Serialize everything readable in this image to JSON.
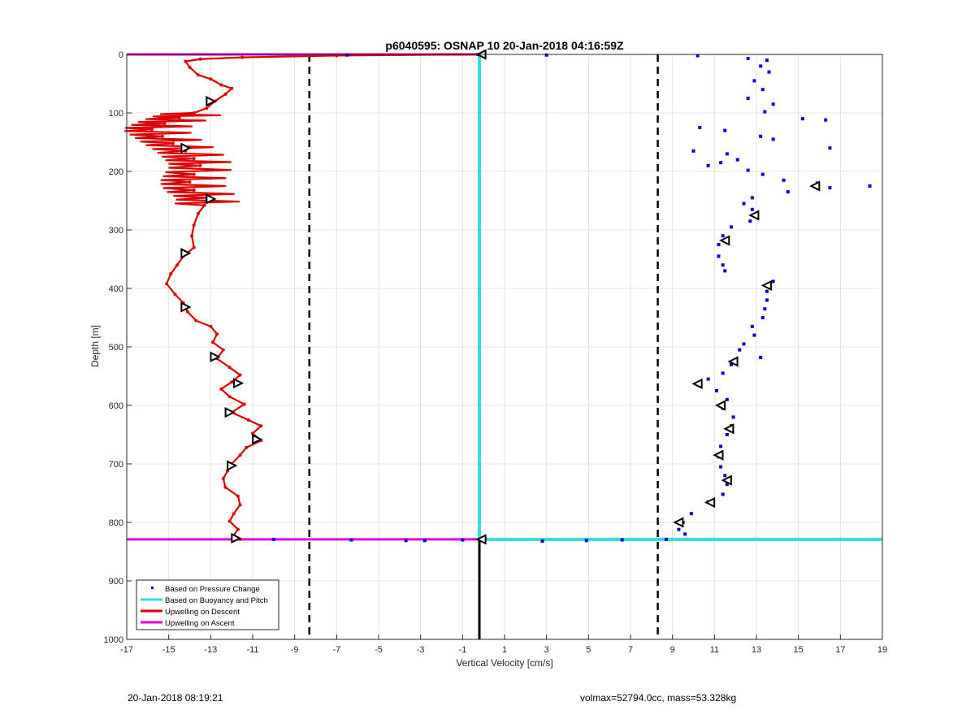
{
  "chart_data": {
    "type": "scatter",
    "title": "p6040595: OSNAP 10 20-Jan-2018 04:16:59Z",
    "xlabel": "Vertical Velocity [cm/s]",
    "ylabel": "Depth [m]",
    "xlim": [
      -17,
      19
    ],
    "ylim": [
      0,
      1000
    ],
    "y_reversed": true,
    "grid": true,
    "xticks": [
      -17,
      -15,
      -13,
      -11,
      -9,
      -7,
      -5,
      -3,
      -1,
      1,
      3,
      5,
      7,
      9,
      11,
      13,
      15,
      17,
      19
    ],
    "yticks": [
      0,
      100,
      200,
      300,
      400,
      500,
      600,
      700,
      800,
      900,
      1000
    ],
    "legend_position": "bottom-left",
    "legend": [
      {
        "label": "Based on Pressure Change",
        "color": "#0000cc",
        "style": "dot"
      },
      {
        "label": "Based on Buoyancy and Pitch",
        "color": "#33dddd",
        "style": "line"
      },
      {
        "label": "Upwelling on Descent",
        "color": "#dd0000",
        "style": "line"
      },
      {
        "label": "Upwelling on Ascent",
        "color": "#dd00dd",
        "style": "line"
      }
    ],
    "reference_lines": {
      "dashed_vertical_x": [
        -8.3,
        8.3
      ],
      "solid_vertical_x": -0.2
    },
    "series": [
      {
        "name": "Upwelling on Descent",
        "color": "#dd0000",
        "points": [
          [
            -0.3,
            0
          ],
          [
            -7,
            2
          ],
          [
            -11.5,
            5
          ],
          [
            -13.5,
            8
          ],
          [
            -14.2,
            12
          ],
          [
            -14,
            22
          ],
          [
            -13.6,
            35
          ],
          [
            -13,
            42
          ],
          [
            -12.5,
            52
          ],
          [
            -12,
            58
          ],
          [
            -12.3,
            68
          ],
          [
            -12.8,
            80
          ],
          [
            -13.2,
            92
          ],
          [
            -13.8,
            100
          ],
          [
            -14.5,
            108
          ],
          [
            -15.2,
            118
          ],
          [
            -15.8,
            128
          ],
          [
            -15.3,
            140
          ],
          [
            -14.8,
            152
          ],
          [
            -14.2,
            165
          ],
          [
            -13.8,
            178
          ],
          [
            -13.5,
            190
          ],
          [
            -13.8,
            205
          ],
          [
            -14,
            218
          ],
          [
            -13.8,
            232
          ],
          [
            -13.2,
            245
          ],
          [
            -13.3,
            258
          ],
          [
            -13.6,
            272
          ],
          [
            -13.8,
            292
          ],
          [
            -13.9,
            310
          ],
          [
            -13.8,
            330
          ],
          [
            -14.3,
            345
          ],
          [
            -14.6,
            360
          ],
          [
            -14.9,
            375
          ],
          [
            -15.1,
            392
          ],
          [
            -14.7,
            410
          ],
          [
            -14.3,
            425
          ],
          [
            -14.1,
            440
          ],
          [
            -13.7,
            455
          ],
          [
            -13,
            465
          ],
          [
            -12.7,
            478
          ],
          [
            -12.9,
            492
          ],
          [
            -12.4,
            505
          ],
          [
            -12.7,
            520
          ],
          [
            -12.1,
            535
          ],
          [
            -11.6,
            548
          ],
          [
            -12,
            560
          ],
          [
            -12.5,
            572
          ],
          [
            -12.1,
            585
          ],
          [
            -11.4,
            598
          ],
          [
            -12,
            612
          ],
          [
            -11.2,
            625
          ],
          [
            -10.6,
            635
          ],
          [
            -11,
            648
          ],
          [
            -10.6,
            660
          ],
          [
            -11.3,
            672
          ],
          [
            -11.6,
            685
          ],
          [
            -12,
            700
          ],
          [
            -12.2,
            712
          ],
          [
            -12.4,
            725
          ],
          [
            -12.3,
            740
          ],
          [
            -11.7,
            755
          ],
          [
            -11.6,
            770
          ],
          [
            -11.9,
            785
          ],
          [
            -12.1,
            798
          ],
          [
            -11.7,
            812
          ],
          [
            -11.9,
            822
          ],
          [
            -11.6,
            829
          ]
        ]
      },
      {
        "name": "Upwelling on Ascent",
        "color": "#dd00dd",
        "points": [
          [
            -17,
            0
          ],
          [
            -0.2,
            0
          ],
          [
            -17,
            829
          ],
          [
            -0.2,
            829
          ]
        ]
      },
      {
        "name": "Based on Buoyancy and Pitch",
        "color": "#33dddd",
        "points": [
          [
            -0.2,
            0
          ],
          [
            -0.2,
            829
          ],
          [
            19,
            829
          ]
        ]
      },
      {
        "name": "Based on Pressure Change",
        "color": "#0000cc",
        "points": [
          [
            10.2,
            2
          ],
          [
            12.6,
            7
          ],
          [
            13.5,
            10
          ],
          [
            13.2,
            20
          ],
          [
            13.6,
            30
          ],
          [
            12.9,
            45
          ],
          [
            13.3,
            60
          ],
          [
            12.6,
            75
          ],
          [
            13.8,
            85
          ],
          [
            13.4,
            98
          ],
          [
            15.2,
            110
          ],
          [
            16.3,
            112
          ],
          [
            10.3,
            125
          ],
          [
            11.5,
            130
          ],
          [
            13.2,
            140
          ],
          [
            13.8,
            145
          ],
          [
            16.5,
            160
          ],
          [
            10,
            165
          ],
          [
            11.6,
            170
          ],
          [
            12.1,
            180
          ],
          [
            11.3,
            185
          ],
          [
            10.7,
            190
          ],
          [
            12.6,
            198
          ],
          [
            13.3,
            205
          ],
          [
            14.3,
            215
          ],
          [
            15.9,
            220
          ],
          [
            16.5,
            228
          ],
          [
            18.4,
            225
          ],
          [
            14.5,
            235
          ],
          [
            12.8,
            245
          ],
          [
            12.4,
            255
          ],
          [
            12.8,
            265
          ],
          [
            12.7,
            285
          ],
          [
            11.8,
            295
          ],
          [
            11.4,
            310
          ],
          [
            11.2,
            325
          ],
          [
            11.2,
            345
          ],
          [
            11.4,
            360
          ],
          [
            11.5,
            370
          ],
          [
            13.8,
            388
          ],
          [
            13.5,
            405
          ],
          [
            13.5,
            420
          ],
          [
            13.4,
            435
          ],
          [
            13.3,
            450
          ],
          [
            12.8,
            465
          ],
          [
            12.9,
            480
          ],
          [
            12.4,
            495
          ],
          [
            12.2,
            505
          ],
          [
            13.2,
            518
          ],
          [
            11.8,
            530
          ],
          [
            11.4,
            545
          ],
          [
            10.7,
            555
          ],
          [
            10.2,
            565
          ],
          [
            11.1,
            575
          ],
          [
            11.6,
            590
          ],
          [
            11.4,
            605
          ],
          [
            11.9,
            620
          ],
          [
            11.8,
            635
          ],
          [
            11.6,
            650
          ],
          [
            11.3,
            670
          ],
          [
            11.2,
            688
          ],
          [
            11.3,
            705
          ],
          [
            11.5,
            720
          ],
          [
            11.6,
            735
          ],
          [
            11.4,
            752
          ],
          [
            10.7,
            765
          ],
          [
            9.9,
            785
          ],
          [
            9.5,
            800
          ],
          [
            9.3,
            812
          ],
          [
            9.6,
            820
          ],
          [
            8.7,
            829
          ],
          [
            -6.5,
            1
          ],
          [
            3,
            1
          ],
          [
            -10,
            829
          ],
          [
            -6.3,
            830
          ],
          [
            -3.7,
            831
          ],
          [
            -2.8,
            831
          ],
          [
            -1,
            830
          ],
          [
            2.8,
            832
          ],
          [
            4.9,
            831
          ],
          [
            6.6,
            830
          ]
        ]
      }
    ],
    "descent_markers": [
      [
        -13,
        80
      ],
      [
        -14.2,
        160
      ],
      [
        -13,
        247
      ],
      [
        -14.2,
        340
      ],
      [
        -14.2,
        432
      ],
      [
        -12.8,
        517
      ],
      [
        -11.7,
        562
      ],
      [
        -12.1,
        612
      ],
      [
        -10.8,
        658
      ],
      [
        -12,
        703
      ],
      [
        -11.8,
        827
      ]
    ],
    "ascent_markers": [
      [
        -0.1,
        0
      ],
      [
        15.8,
        225
      ],
      [
        12.9,
        275
      ],
      [
        11.5,
        318
      ],
      [
        13.5,
        395
      ],
      [
        11.9,
        525
      ],
      [
        10.2,
        563
      ],
      [
        11.3,
        600
      ],
      [
        11.7,
        640
      ],
      [
        11.2,
        685
      ],
      [
        11.6,
        728
      ],
      [
        10.8,
        766
      ],
      [
        9.3,
        800
      ],
      [
        -0.1,
        829
      ]
    ],
    "footer_left": "20-Jan-2018 08:19:21",
    "footer_right": "volmax=52794.0cc, mass=53.328kg"
  }
}
